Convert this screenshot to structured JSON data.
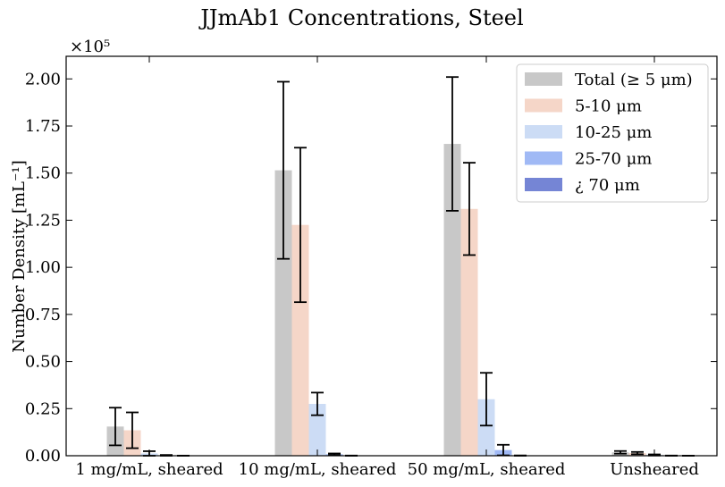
{
  "chart_data": {
    "type": "bar",
    "title": "JJmAb1 Concentrations, Steel",
    "xlabel": "",
    "ylabel": "Number Density [mL⁻¹]",
    "y_scale_label": "×10⁵",
    "y_multiplier": 100000,
    "ylim": [
      0,
      2.12
    ],
    "yticks": [
      "0.00",
      "0.25",
      "0.50",
      "0.75",
      "1.00",
      "1.25",
      "1.50",
      "1.75",
      "2.00"
    ],
    "categories": [
      "1 mg/mL, sheared",
      "10 mg/mL, sheared",
      "50 mg/mL, sheared",
      "Unsheared"
    ],
    "series": [
      {
        "name": "Total (≥ 5 μm)",
        "color": "#c8c8c8",
        "values": [
          0.155,
          1.515,
          1.655,
          0.018
        ],
        "errors": [
          0.1,
          0.47,
          0.355,
          0.007
        ]
      },
      {
        "name": "5-10 μm",
        "color": "#f5d6c8",
        "values": [
          0.135,
          1.225,
          1.31,
          0.014
        ],
        "errors": [
          0.095,
          0.41,
          0.245,
          0.006
        ]
      },
      {
        "name": "10-25 μm",
        "color": "#ccdcf5",
        "values": [
          0.012,
          0.275,
          0.3,
          0.004
        ],
        "errors": [
          0.012,
          0.06,
          0.14,
          0.003
        ]
      },
      {
        "name": "25-70 μm",
        "color": "#a0b9f5",
        "values": [
          0.002,
          0.008,
          0.03,
          0.0005
        ],
        "errors": [
          0.002,
          0.004,
          0.028,
          0.0005
        ]
      },
      {
        "name": "¿ 70 μm",
        "color": "#7585d5",
        "values": [
          0.0003,
          0.0005,
          0.0008,
          0.0001
        ],
        "errors": [
          0.0003,
          0.0005,
          0.0008,
          0.0001
        ]
      }
    ],
    "error_bars": true,
    "grid": false,
    "legend_position": "top-right"
  }
}
